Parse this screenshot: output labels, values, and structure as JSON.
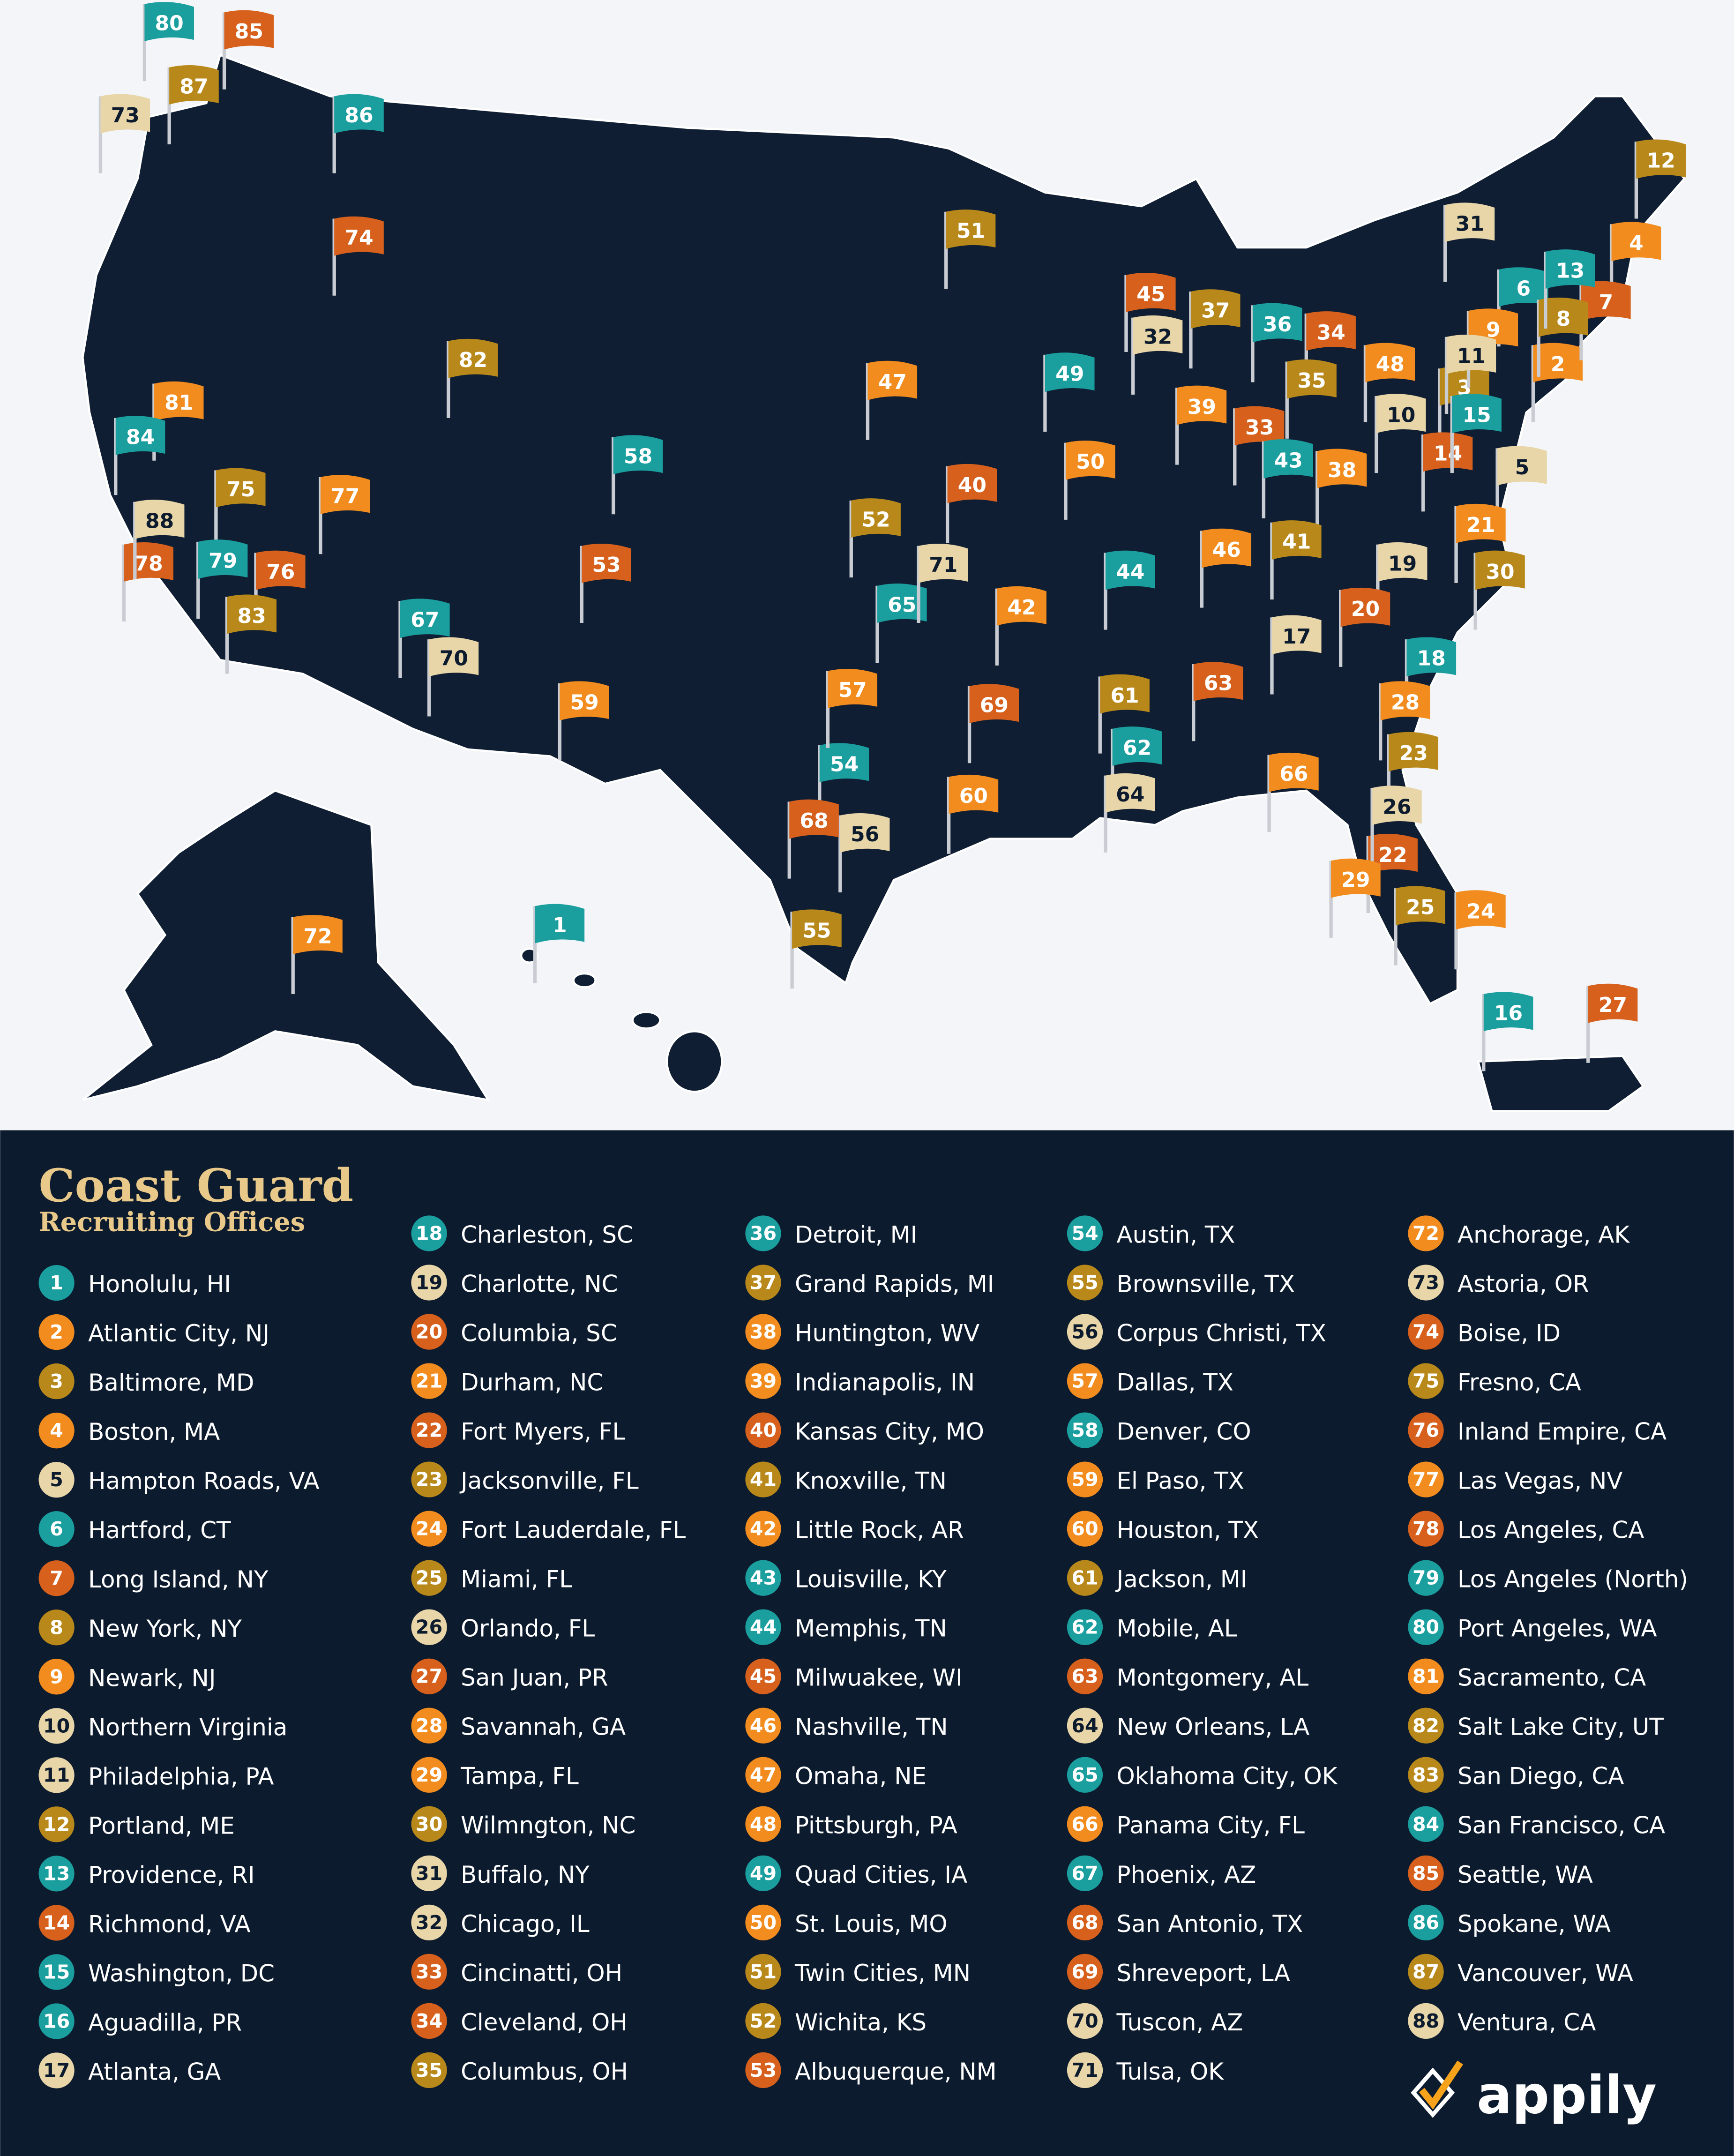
{
  "title": "Coast Guard",
  "subtitle": "Recruiting Offices",
  "logo": "appily",
  "offices": [
    {
      "number": 1,
      "name": "Honolulu, HI",
      "color": "#1a9e9e"
    },
    {
      "number": 2,
      "name": "Atlantic City, NJ",
      "color": "#f28c1e"
    },
    {
      "number": 3,
      "name": "Baltimore, MD",
      "color": "#b8891a"
    },
    {
      "number": 4,
      "name": "Boston, MA",
      "color": "#f28c1e"
    },
    {
      "number": 5,
      "name": "Hampton Roads, VA",
      "color": "#e8d6a8"
    },
    {
      "number": 6,
      "name": "Hartford, CT",
      "color": "#1a9e9e"
    },
    {
      "number": 7,
      "name": "Long Island, NY",
      "color": "#d6601c"
    },
    {
      "number": 8,
      "name": "New York, NY",
      "color": "#b8891a"
    },
    {
      "number": 9,
      "name": "Newark, NJ",
      "color": "#f28c1e"
    },
    {
      "number": 10,
      "name": "Northern Virginia",
      "color": "#e8d6a8"
    },
    {
      "number": 11,
      "name": "Philadelphia, PA",
      "color": "#e8d6a8"
    },
    {
      "number": 12,
      "name": "Portland, ME",
      "color": "#b8891a"
    },
    {
      "number": 13,
      "name": "Providence, RI",
      "color": "#1a9e9e"
    },
    {
      "number": 14,
      "name": "Richmond, VA",
      "color": "#d6601c"
    },
    {
      "number": 15,
      "name": "Washington, DC",
      "color": "#1a9e9e"
    },
    {
      "number": 16,
      "name": "Aguadilla, PR",
      "color": "#1a9e9e"
    },
    {
      "number": 17,
      "name": "Atlanta, GA",
      "color": "#e8d6a8"
    },
    {
      "number": 18,
      "name": "Charleston, SC",
      "color": "#1a9e9e"
    },
    {
      "number": 19,
      "name": "Charlotte, NC",
      "color": "#e8d6a8"
    },
    {
      "number": 20,
      "name": "Columbia, SC",
      "color": "#d6601c"
    },
    {
      "number": 21,
      "name": "Durham, NC",
      "color": "#f28c1e"
    },
    {
      "number": 22,
      "name": "Fort Myers, FL",
      "color": "#d6601c"
    },
    {
      "number": 23,
      "name": "Jacksonville, FL",
      "color": "#b8891a"
    },
    {
      "number": 24,
      "name": "Fort Lauderdale, FL",
      "color": "#f28c1e"
    },
    {
      "number": 25,
      "name": "Miami, FL",
      "color": "#b8891a"
    },
    {
      "number": 26,
      "name": "Orlando, FL",
      "color": "#e8d6a8"
    },
    {
      "number": 27,
      "name": "San Juan, PR",
      "color": "#d6601c"
    },
    {
      "number": 28,
      "name": "Savannah, GA",
      "color": "#f28c1e"
    },
    {
      "number": 29,
      "name": "Tampa, FL",
      "color": "#f28c1e"
    },
    {
      "number": 30,
      "name": "Wilmngton, NC",
      "color": "#b8891a"
    },
    {
      "number": 31,
      "name": "Buffalo, NY",
      "color": "#e8d6a8"
    },
    {
      "number": 32,
      "name": "Chicago, IL",
      "color": "#e8d6a8"
    },
    {
      "number": 33,
      "name": "Cincinatti, OH",
      "color": "#d6601c"
    },
    {
      "number": 34,
      "name": "Cleveland, OH",
      "color": "#d6601c"
    },
    {
      "number": 35,
      "name": "Columbus, OH",
      "color": "#b8891a"
    },
    {
      "number": 36,
      "name": "Detroit, MI",
      "color": "#1a9e9e"
    },
    {
      "number": 37,
      "name": "Grand Rapids, MI",
      "color": "#b8891a"
    },
    {
      "number": 38,
      "name": "Huntington, WV",
      "color": "#f28c1e"
    },
    {
      "number": 39,
      "name": "Indianapolis, IN",
      "color": "#f28c1e"
    },
    {
      "number": 40,
      "name": "Kansas City, MO",
      "color": "#d6601c"
    },
    {
      "number": 41,
      "name": "Knoxville, TN",
      "color": "#b8891a"
    },
    {
      "number": 42,
      "name": "Little Rock, AR",
      "color": "#f28c1e"
    },
    {
      "number": 43,
      "name": "Louisville, KY",
      "color": "#1a9e9e"
    },
    {
      "number": 44,
      "name": "Memphis, TN",
      "color": "#1a9e9e"
    },
    {
      "number": 45,
      "name": "Milwuakee, WI",
      "color": "#d6601c"
    },
    {
      "number": 46,
      "name": "Nashville, TN",
      "color": "#f28c1e"
    },
    {
      "number": 47,
      "name": "Omaha, NE",
      "color": "#f28c1e"
    },
    {
      "number": 48,
      "name": "Pittsburgh, PA",
      "color": "#f28c1e"
    },
    {
      "number": 49,
      "name": "Quad Cities, IA",
      "color": "#1a9e9e"
    },
    {
      "number": 50,
      "name": "St. Louis, MO",
      "color": "#f28c1e"
    },
    {
      "number": 51,
      "name": "Twin Cities, MN",
      "color": "#b8891a"
    },
    {
      "number": 52,
      "name": "Wichita, KS",
      "color": "#b8891a"
    },
    {
      "number": 53,
      "name": "Albuquerque, NM",
      "color": "#d6601c"
    },
    {
      "number": 54,
      "name": "Austin, TX",
      "color": "#1a9e9e"
    },
    {
      "number": 55,
      "name": "Brownsville, TX",
      "color": "#b8891a"
    },
    {
      "number": 56,
      "name": "Corpus Christi, TX",
      "color": "#e8d6a8"
    },
    {
      "number": 57,
      "name": "Dallas, TX",
      "color": "#f28c1e"
    },
    {
      "number": 58,
      "name": "Denver, CO",
      "color": "#1a9e9e"
    },
    {
      "number": 59,
      "name": "El Paso, TX",
      "color": "#f28c1e"
    },
    {
      "number": 60,
      "name": "Houston, TX",
      "color": "#f28c1e"
    },
    {
      "number": 61,
      "name": "Jackson, MI",
      "color": "#b8891a"
    },
    {
      "number": 62,
      "name": "Mobile, AL",
      "color": "#1a9e9e"
    },
    {
      "number": 63,
      "name": "Montgomery, AL",
      "color": "#d6601c"
    },
    {
      "number": 64,
      "name": "New Orleans, LA",
      "color": "#e8d6a8"
    },
    {
      "number": 65,
      "name": "Oklahoma City, OK",
      "color": "#1a9e9e"
    },
    {
      "number": 66,
      "name": "Panama City, FL",
      "color": "#f28c1e"
    },
    {
      "number": 67,
      "name": "Phoenix, AZ",
      "color": "#1a9e9e"
    },
    {
      "number": 68,
      "name": "San Antonio, TX",
      "color": "#d6601c"
    },
    {
      "number": 69,
      "name": "Shreveport, LA",
      "color": "#d6601c"
    },
    {
      "number": 70,
      "name": "Tuscon, AZ",
      "color": "#e8d6a8"
    },
    {
      "number": 71,
      "name": "Tulsa, OK",
      "color": "#e8d6a8"
    },
    {
      "number": 72,
      "name": "Anchorage, AK",
      "color": "#f28c1e"
    },
    {
      "number": 73,
      "name": "Astoria, OR",
      "color": "#e8d6a8"
    },
    {
      "number": 74,
      "name": "Boise, ID",
      "color": "#d6601c"
    },
    {
      "number": 75,
      "name": "Fresno, CA",
      "color": "#b8891a"
    },
    {
      "number": 76,
      "name": "Inland Empire, CA",
      "color": "#d6601c"
    },
    {
      "number": 77,
      "name": "Las Vegas, NV",
      "color": "#f28c1e"
    },
    {
      "number": 78,
      "name": "Los Angeles, CA",
      "color": "#d6601c"
    },
    {
      "number": 79,
      "name": "Los Angeles (North)",
      "color": "#1a9e9e"
    },
    {
      "number": 80,
      "name": "Port Angeles, WA",
      "color": "#1a9e9e"
    },
    {
      "number": 81,
      "name": "Sacramento, CA",
      "color": "#f28c1e"
    },
    {
      "number": 82,
      "name": "Salt Lake City, UT",
      "color": "#b8891a"
    },
    {
      "number": 83,
      "name": "San Diego, CA",
      "color": "#b8891a"
    },
    {
      "number": 84,
      "name": "San Francisco, CA",
      "color": "#1a9e9e"
    },
    {
      "number": 85,
      "name": "Seattle, WA",
      "color": "#d6601c"
    },
    {
      "number": 86,
      "name": "Spokane, WA",
      "color": "#1a9e9e"
    },
    {
      "number": 87,
      "name": "Vancouver, WA",
      "color": "#b8891a"
    },
    {
      "number": 88,
      "name": "Ventura, CA",
      "color": "#e8d6a8"
    }
  ]
}
